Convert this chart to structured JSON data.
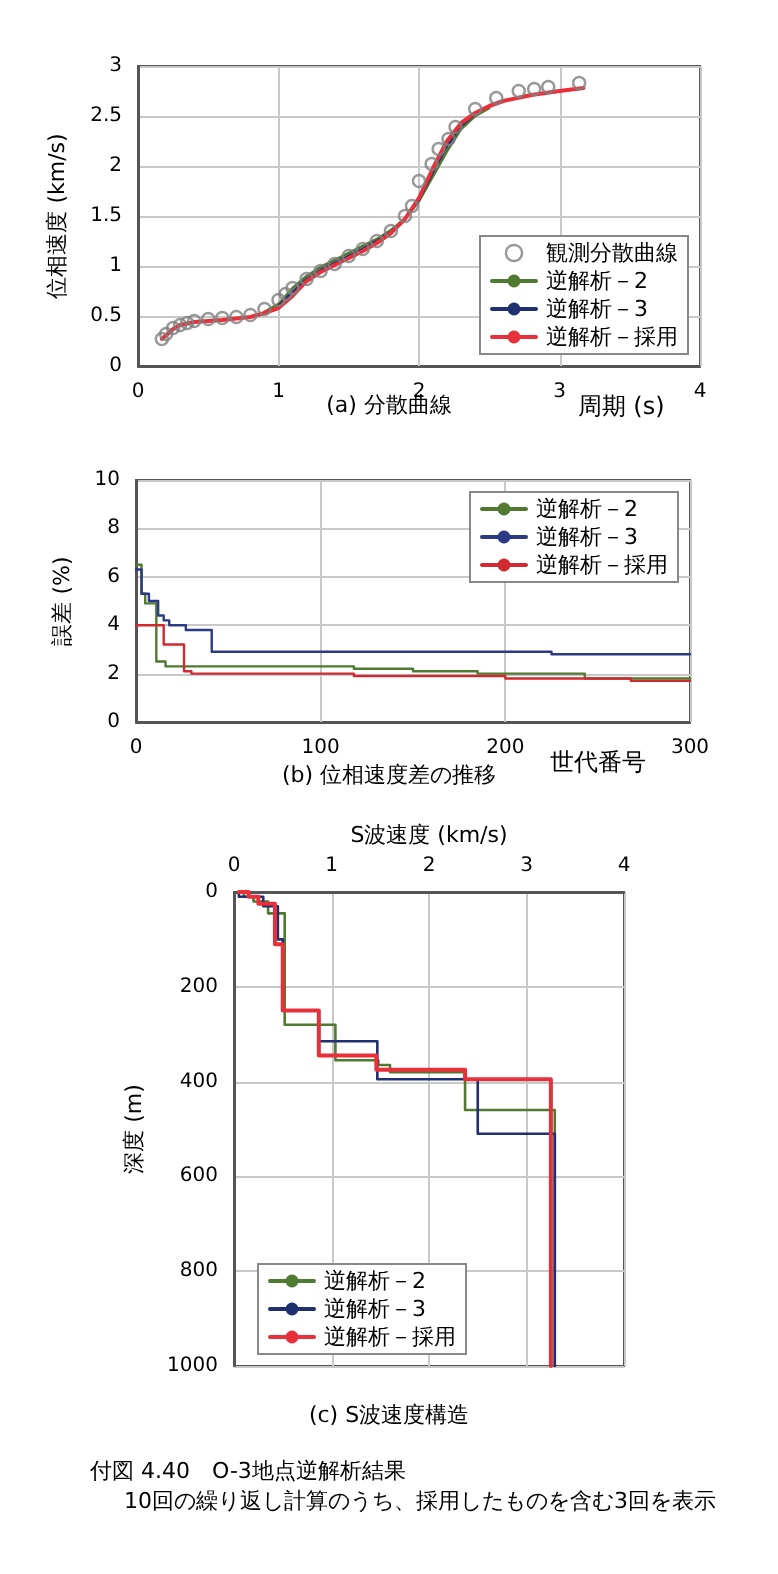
{
  "chart_data": [
    {
      "type": "line",
      "title": "(a) 分散曲線",
      "xlabel": "周期 (s)",
      "ylabel": "位相速度 (km/s)",
      "xlim": [
        0,
        4
      ],
      "xticks": [
        0,
        1,
        2,
        3,
        4
      ],
      "ylim": [
        0,
        3
      ],
      "yticks": [
        0,
        0.5,
        1,
        1.5,
        2,
        2.5,
        3
      ],
      "grid": true,
      "legend": "bottom right",
      "marker": "none",
      "line_style": "solid",
      "series": [
        {
          "name": "観測分散曲線",
          "type": "scatter",
          "marker": "circle",
          "color": "#808080",
          "x": [
            0.17,
            0.2,
            0.25,
            0.3,
            0.35,
            0.4,
            0.5,
            0.6,
            0.7,
            0.8,
            0.9,
            1.0,
            1.05,
            1.1,
            1.2,
            1.3,
            1.4,
            1.5,
            1.6,
            1.7,
            1.8,
            1.9,
            1.95,
            2.0,
            2.09,
            2.14,
            2.21,
            2.26,
            2.4,
            2.55,
            2.71,
            2.82,
            2.92,
            3.14
          ],
          "values": [
            0.27,
            0.32,
            0.38,
            0.41,
            0.43,
            0.45,
            0.47,
            0.48,
            0.49,
            0.51,
            0.57,
            0.66,
            0.72,
            0.78,
            0.87,
            0.95,
            1.02,
            1.1,
            1.17,
            1.25,
            1.35,
            1.5,
            1.6,
            1.85,
            2.02,
            2.17,
            2.27,
            2.39,
            2.57,
            2.68,
            2.75,
            2.77,
            2.79,
            2.83
          ]
        },
        {
          "name": "逆解析－2",
          "color": "#4f7a30",
          "x": [
            0.9,
            1.0,
            1.1,
            1.2,
            1.3,
            1.4,
            1.5,
            1.6,
            1.7,
            1.8,
            1.9,
            2.0,
            2.1,
            2.2,
            2.3,
            2.4,
            2.5
          ],
          "values": [
            0.54,
            0.62,
            0.78,
            0.9,
            0.99,
            1.06,
            1.13,
            1.2,
            1.27,
            1.36,
            1.47,
            1.65,
            1.9,
            2.15,
            2.37,
            2.5,
            2.58
          ]
        },
        {
          "name": "逆解析－3",
          "color": "#1f2f70",
          "x": [
            1.0,
            1.1,
            1.2,
            1.3,
            1.4,
            1.5,
            1.6,
            1.7,
            1.8,
            1.9,
            2.0,
            2.1,
            2.2,
            2.3,
            2.4
          ],
          "values": [
            0.6,
            0.74,
            0.87,
            0.96,
            1.03,
            1.1,
            1.17,
            1.25,
            1.34,
            1.47,
            1.66,
            1.94,
            2.2,
            2.4,
            2.52
          ]
        },
        {
          "name": "逆解析－採用",
          "color": "#e8303a",
          "x": [
            0.17,
            0.25,
            0.3,
            0.4,
            0.6,
            0.8,
            0.9,
            1.0,
            1.1,
            1.2,
            1.3,
            1.4,
            1.5,
            1.6,
            1.7,
            1.8,
            1.9,
            2.0,
            2.1,
            2.2,
            2.3,
            2.4,
            2.5,
            2.6,
            2.8,
            3.0,
            3.17
          ],
          "values": [
            0.27,
            0.37,
            0.41,
            0.44,
            0.46,
            0.49,
            0.53,
            0.58,
            0.7,
            0.85,
            0.94,
            1.01,
            1.08,
            1.15,
            1.23,
            1.33,
            1.47,
            1.68,
            1.98,
            2.25,
            2.43,
            2.53,
            2.6,
            2.65,
            2.71,
            2.75,
            2.78
          ]
        }
      ]
    },
    {
      "type": "step",
      "title": "(b) 位相速度差の推移",
      "xlabel": "世代番号",
      "ylabel": "誤差 (%)",
      "xlim": [
        0,
        300
      ],
      "xticks": [
        0,
        100,
        200,
        300
      ],
      "ylim": [
        0,
        10
      ],
      "yticks": [
        0,
        2,
        4,
        6,
        8,
        10
      ],
      "grid": true,
      "legend": "top right",
      "marker": "none",
      "line_style": "solid",
      "series": [
        {
          "name": "逆解析－2",
          "color": "#4f7a30",
          "x": [
            0,
            3,
            5,
            11,
            16,
            118,
            150,
            185,
            243,
            300
          ],
          "values": [
            6.5,
            5.3,
            4.9,
            2.5,
            2.3,
            2.2,
            2.1,
            2.0,
            1.8,
            1.8
          ]
        },
        {
          "name": "逆解析－3",
          "color": "#2a3a85",
          "x": [
            0,
            3,
            7,
            12,
            15,
            18,
            27,
            41,
            225,
            300
          ],
          "values": [
            6.3,
            5.3,
            5.0,
            4.4,
            4.2,
            4.0,
            3.8,
            2.9,
            2.8,
            2.8
          ]
        },
        {
          "name": "逆解析－採用",
          "color": "#d02a30",
          "x": [
            0,
            15,
            26,
            30,
            118,
            200,
            268,
            300
          ],
          "values": [
            4.0,
            3.2,
            2.1,
            2.0,
            1.9,
            1.8,
            1.7,
            1.7
          ]
        }
      ]
    },
    {
      "type": "line",
      "title": "(c) S波速度構造",
      "xlabel": "S波速度 (km/s)",
      "ylabel": "深度 (m)",
      "xlim": [
        0,
        4
      ],
      "xticks": [
        0,
        1,
        2,
        3,
        4
      ],
      "ylim": [
        1000,
        0
      ],
      "yticks": [
        0,
        200,
        400,
        600,
        800,
        1000
      ],
      "grid": true,
      "legend": "bottom left",
      "marker": "none",
      "line_style": "solid",
      "annotations": [
        "付図 4.40　O-3地点逆解析結果",
        "10回の繰り返し計算のうち、採用したものを含む3回を表示"
      ],
      "series": [
        {
          "name": "逆解析－2",
          "color": "#4f7a30",
          "x": [
            0.1,
            0.1,
            0.2,
            0.2,
            0.35,
            0.35,
            0.52,
            0.52,
            1.04,
            1.04,
            1.48,
            1.48,
            1.6,
            1.6,
            2.37,
            2.37,
            3.29,
            3.29
          ],
          "values": [
            0,
            10,
            10,
            20,
            20,
            45,
            45,
            280,
            280,
            355,
            355,
            365,
            365,
            380,
            380,
            460,
            460,
            1000
          ]
        },
        {
          "name": "逆解析－3",
          "color": "#1f2f70",
          "x": [
            0.05,
            0.05,
            0.3,
            0.3,
            0.45,
            0.45,
            0.5,
            0.5,
            0.87,
            0.87,
            1.47,
            1.47,
            2.5,
            2.5,
            3.29,
            3.29
          ],
          "values": [
            0,
            10,
            10,
            30,
            30,
            100,
            100,
            250,
            250,
            315,
            315,
            395,
            395,
            510,
            510,
            1000
          ]
        },
        {
          "name": "逆解析－採用",
          "color": "#e8303a",
          "x": [
            0.05,
            0.15,
            0.15,
            0.25,
            0.25,
            0.42,
            0.42,
            0.5,
            0.5,
            0.87,
            0.87,
            1.46,
            1.46,
            2.37,
            2.37,
            3.25,
            3.25
          ],
          "values": [
            0,
            0,
            10,
            10,
            25,
            25,
            110,
            110,
            250,
            250,
            345,
            345,
            375,
            375,
            395,
            395,
            1000
          ]
        }
      ]
    }
  ]
}
